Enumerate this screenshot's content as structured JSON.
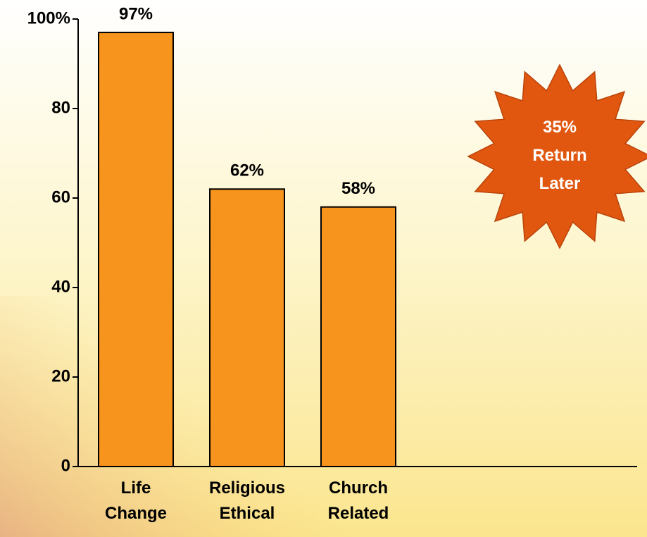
{
  "chart_data": {
    "type": "bar",
    "categories": [
      "Life Change",
      "Religious Ethical",
      "Church Related"
    ],
    "values": [
      97,
      62,
      58
    ],
    "value_labels": [
      "97%",
      "62%",
      "58%"
    ],
    "color": "#f7941d",
    "ylim": [
      0,
      100
    ],
    "yticks": [
      0,
      20,
      40,
      60,
      80,
      {
        "value": 100,
        "label": "100%"
      }
    ],
    "annotation": "35% Return Later",
    "annotation_color": "#e2570f"
  }
}
